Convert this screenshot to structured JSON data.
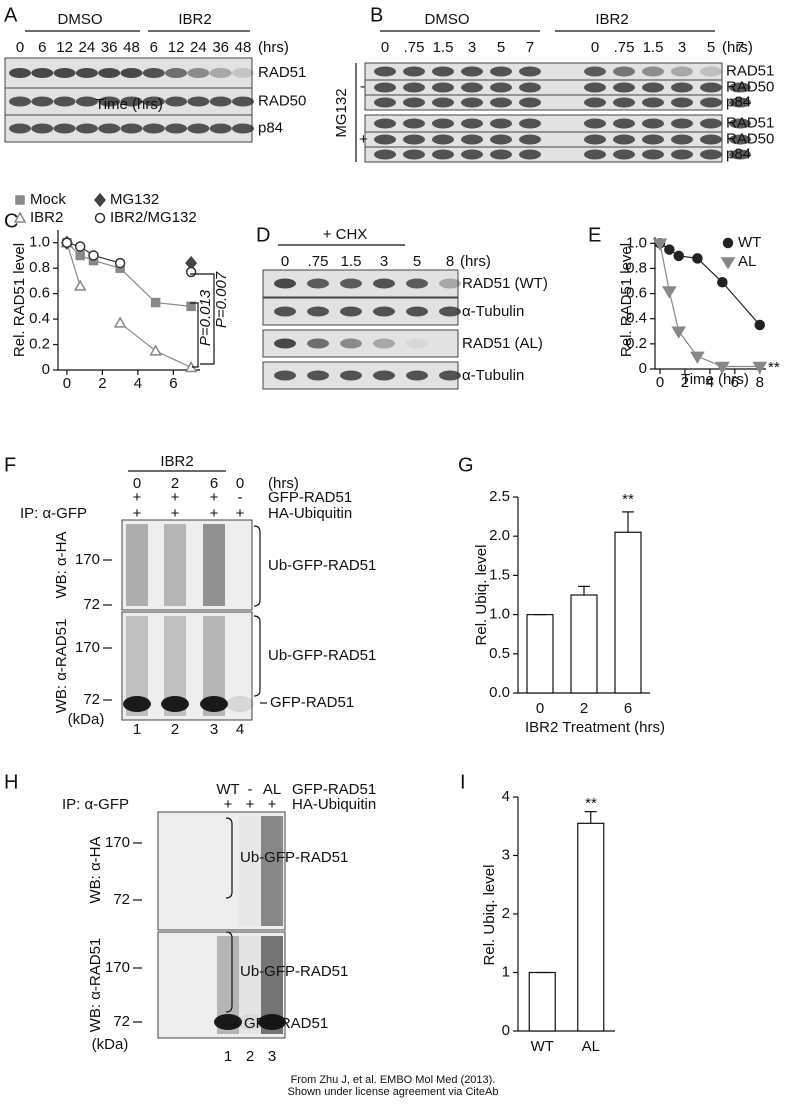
{
  "panels": {
    "A": {
      "label": "A",
      "groups": [
        "DMSO",
        "IBR2"
      ],
      "lanes": [
        "0",
        "6",
        "12",
        "24",
        "36",
        "48",
        "6",
        "12",
        "24",
        "36",
        "48"
      ],
      "unit": "(hrs)",
      "rows": [
        "RAD51",
        "RAD50",
        "p84"
      ]
    },
    "B": {
      "label": "B",
      "groups": [
        "DMSO",
        "IBR2"
      ],
      "lanes": [
        "0",
        ".75",
        "1.5",
        "3",
        "5",
        "7",
        "0",
        ".75",
        "1.5",
        "3",
        "5",
        "7"
      ],
      "unit": "(hrs)",
      "treatment": "MG132",
      "conditions": [
        "-",
        "+"
      ],
      "rows": [
        "RAD51",
        "RAD50",
        "p84",
        "RAD51",
        "RAD50",
        "p84"
      ]
    },
    "D": {
      "label": "D",
      "treatment": "+ CHX",
      "lanes": [
        "0",
        ".75",
        "1.5",
        "3",
        "5",
        "8"
      ],
      "unit": "(hrs)",
      "rows": [
        "RAD51 (WT)",
        "α-Tubulin",
        "RAD51 (AL)",
        "α-Tubulin"
      ]
    },
    "F": {
      "label": "F",
      "group": "IBR2",
      "lanes": [
        "0",
        "2",
        "6",
        "0"
      ],
      "unit": "(hrs)",
      "ip": "IP: α-GFP",
      "conditions": [
        {
          "name": "GFP-RAD51",
          "signs": [
            "+",
            "+",
            "+",
            "-"
          ]
        },
        {
          "name": "HA-Ubiquitin",
          "signs": [
            "+",
            "+",
            "+",
            "+"
          ]
        }
      ],
      "blots": [
        {
          "wb": "WB: α-HA",
          "markers": [
            "170",
            "72"
          ],
          "bands": [
            "Ub-GFP-RAD51"
          ]
        },
        {
          "wb": "WB: α-RAD51",
          "markers": [
            "170",
            "72"
          ],
          "bands": [
            "Ub-GFP-RAD51",
            "GFP-RAD51"
          ]
        }
      ],
      "kda": "(kDa)",
      "lane_numbers": [
        "1",
        "2",
        "3",
        "4"
      ]
    },
    "H": {
      "label": "H",
      "lanes": [
        "WT",
        "-",
        "AL"
      ],
      "lanes_name": "GFP-RAD51",
      "ip": "IP: α-GFP",
      "conditions": [
        {
          "name": "HA-Ubiquitin",
          "signs": [
            "+",
            "+",
            "+"
          ]
        }
      ],
      "blots": [
        {
          "wb": "WB: α-HA",
          "markers": [
            "170",
            "72"
          ],
          "bands": [
            "Ub-GFP-RAD51"
          ]
        },
        {
          "wb": "WB: α-RAD51",
          "markers": [
            "170",
            "72"
          ],
          "bands": [
            "Ub-GFP-RAD51",
            "GFP-RAD51"
          ]
        }
      ],
      "kda": "(kDa)",
      "lane_numbers": [
        "1",
        "2",
        "3"
      ]
    }
  },
  "chart_data": [
    {
      "type": "line",
      "panel_label": "C",
      "ylabel": "Rel. RAD51 level",
      "xlabel": "Time (hrs)",
      "x": [
        0,
        0.75,
        1.5,
        3,
        5,
        7
      ],
      "series": [
        {
          "name": "Mock",
          "color": "#888888",
          "marker": "square",
          "filled": true,
          "values": [
            1.0,
            0.9,
            0.86,
            0.8,
            0.53,
            0.5
          ]
        },
        {
          "name": "IBR2",
          "color": "#888888",
          "marker": "triangle",
          "filled": false,
          "values": [
            1.0,
            0.66,
            null,
            0.37,
            0.15,
            0.02
          ]
        },
        {
          "name": "MG132",
          "color": "#444444",
          "marker": "diamond",
          "filled": true,
          "values": [
            1.0,
            null,
            null,
            null,
            null,
            0.84
          ]
        },
        {
          "name": "IBR2/MG132",
          "color": "#333333",
          "marker": "circle",
          "filled": false,
          "values": [
            1.0,
            0.97,
            0.9,
            0.84,
            null,
            0.77
          ]
        }
      ],
      "xlim": [
        -0.5,
        7.5
      ],
      "xticks": [
        0,
        2,
        4,
        6
      ],
      "ylim": [
        0,
        1.1
      ],
      "yticks": [
        0,
        0.2,
        0.4,
        0.6,
        0.8,
        {
          "value": 1,
          "label": "1.0"
        }
      ],
      "annotations": [
        "P=0.007",
        "P=0.013"
      ]
    },
    {
      "type": "line",
      "panel_label": "E",
      "ylabel": "Rel. RAD51 level",
      "xlabel": "Time (hrs)",
      "x": [
        0,
        0.75,
        1.5,
        3,
        5,
        8
      ],
      "series": [
        {
          "name": "WT",
          "color": "#222222",
          "marker": "circle",
          "filled": true,
          "values": [
            1.0,
            0.95,
            0.9,
            0.88,
            0.69,
            0.35
          ]
        },
        {
          "name": "AL",
          "color": "#888888",
          "marker": "downtriangle",
          "filled": true,
          "values": [
            1.0,
            0.62,
            0.3,
            0.1,
            0.02,
            0.02
          ]
        }
      ],
      "xlim": [
        -0.4,
        8.5
      ],
      "xticks": [
        0,
        2,
        4,
        6,
        8
      ],
      "ylim": [
        0,
        1.05
      ],
      "yticks": [
        0,
        0.2,
        0.4,
        0.6,
        0.8,
        {
          "value": 1,
          "label": "1.0"
        }
      ],
      "annotations": [
        "**"
      ]
    },
    {
      "type": "bar",
      "panel_label": "G",
      "ylabel": "Rel. Ubiq. level",
      "xlabel": "IBR2 Treatment (hrs)",
      "categories": [
        "0",
        "2",
        "6"
      ],
      "values": [
        1.0,
        1.25,
        2.05
      ],
      "errors": [
        0,
        0.11,
        0.26
      ],
      "color": "#ffffff",
      "ylim": [
        0,
        2.5
      ],
      "yticks": [
        {
          "value": 0,
          "label": "0.0"
        },
        0.5,
        {
          "value": 1,
          "label": "1.0"
        },
        1.5,
        {
          "value": 2,
          "label": "2.0"
        },
        2.5
      ],
      "annotations": [
        "**"
      ]
    },
    {
      "type": "bar",
      "panel_label": "I",
      "ylabel": "Rel. Ubiq. level",
      "categories": [
        "WT",
        "AL"
      ],
      "values": [
        1,
        3.55
      ],
      "errors": [
        0,
        0.2
      ],
      "color": "#ffffff",
      "ylim": [
        0,
        4
      ],
      "yticks": [
        0,
        1,
        2,
        3,
        4
      ],
      "annotations": [
        "**"
      ]
    }
  ],
  "footer": [
    "From Zhu J, et al. EMBO Mol Med (2013).",
    "Shown under license agreement via CiteAb"
  ]
}
